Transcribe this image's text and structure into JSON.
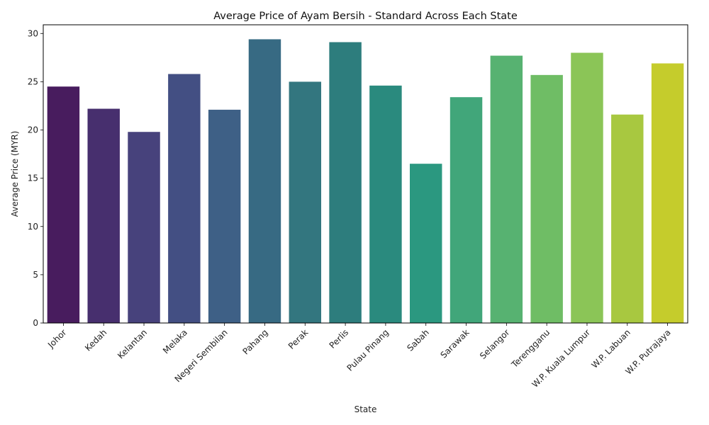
{
  "chart_data": {
    "type": "bar",
    "title": "Average Price of Ayam Bersih - Standard Across Each State",
    "xlabel": "State",
    "ylabel": "Average Price (MYR)",
    "categories": [
      "Johor",
      "Kedah",
      "Kelantan",
      "Melaka",
      "Negeri Sembilan",
      "Pahang",
      "Perak",
      "Perlis",
      "Pulau Pinang",
      "Sabah",
      "Sarawak",
      "Selangor",
      "Terengganu",
      "W.P. Kuala Lumpur",
      "W.P. Labuan",
      "W.P. Putrajaya"
    ],
    "values": [
      24.5,
      22.2,
      19.8,
      25.8,
      22.1,
      29.4,
      25.0,
      29.1,
      24.6,
      16.5,
      23.4,
      27.7,
      25.7,
      28.0,
      21.6,
      26.9
    ],
    "colors": [
      "#481c5e",
      "#472f6e",
      "#47427c",
      "#434f83",
      "#3e6086",
      "#376a83",
      "#33767f",
      "#2d7d7d",
      "#2a8a7e",
      "#2b9880",
      "#41a67a",
      "#57b271",
      "#6fbd65",
      "#8bc557",
      "#a8c840",
      "#c5cc2c"
    ],
    "ylim": [
      0,
      30.9
    ],
    "yticks": [
      0,
      5,
      10,
      15,
      20,
      25,
      30
    ],
    "grid": false,
    "legend": "none"
  }
}
